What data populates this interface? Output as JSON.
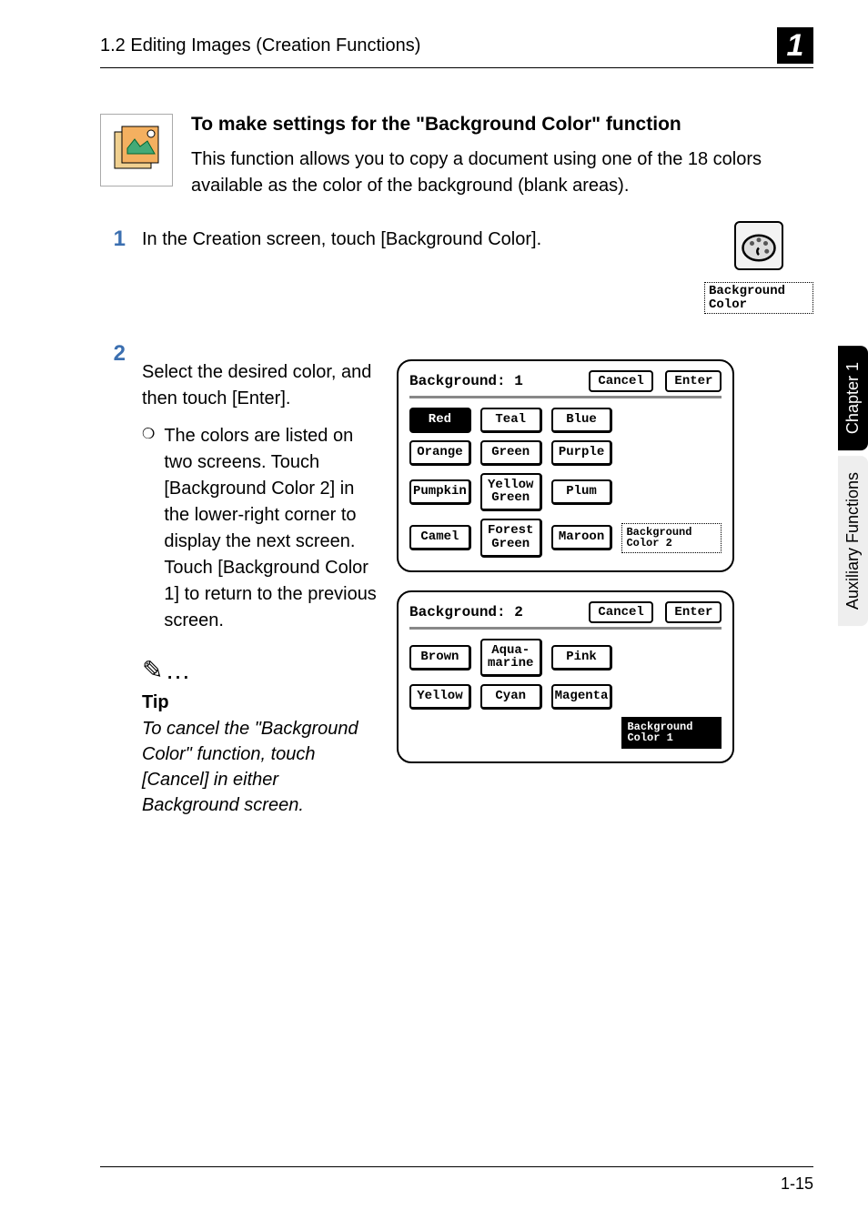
{
  "header": {
    "title": "1.2 Editing Images (Creation Functions)",
    "chapter_glyph": "1"
  },
  "section": {
    "heading": "To make settings for the \"Background Color\" function",
    "body": "This function allows you to copy a document using one of the 18 colors available as the color of the background (blank areas)."
  },
  "steps": {
    "step1": {
      "num": "1",
      "text": "In the Creation screen, touch [Background Color].",
      "button_label": "Background\nColor"
    },
    "step2": {
      "num": "2",
      "intro": "Select the desired color, and then touch [Enter].",
      "bullet_glyph": "❍",
      "substep": "The colors are listed on two screens. Touch [Background Color 2] in the lower-right corner to display the next screen.\nTouch [Background Color 1] to return to the previous screen."
    }
  },
  "tip": {
    "icon": "✎…",
    "label": "Tip",
    "body": "To cancel the \"Background Color\" function, touch [Cancel] in either Background screen."
  },
  "panels": {
    "common": {
      "cancel_label": "Cancel",
      "enter_label": "Enter"
    },
    "panel1": {
      "title_prefix": "Background:",
      "title_num": "1",
      "colors": [
        {
          "label": "Red",
          "selected": true
        },
        {
          "label": "Teal"
        },
        {
          "label": "Blue"
        },
        {
          "label": "Orange"
        },
        {
          "label": "Green"
        },
        {
          "label": "Purple"
        },
        {
          "label": "Pumpkin"
        },
        {
          "label": "Yellow\nGreen"
        },
        {
          "label": "Plum"
        },
        {
          "label": "Camel"
        },
        {
          "label": "Forest\nGreen"
        },
        {
          "label": "Maroon"
        }
      ],
      "nav_label": "Background\nColor 2"
    },
    "panel2": {
      "title_prefix": "Background:",
      "title_num": "2",
      "colors": [
        {
          "label": "Brown"
        },
        {
          "label": "Aqua-\nmarine"
        },
        {
          "label": "Pink"
        },
        {
          "label": "Yellow"
        },
        {
          "label": "Cyan"
        },
        {
          "label": "Magenta"
        }
      ],
      "nav_label": "Background\nColor 1"
    }
  },
  "side_tabs": {
    "chapter": "Chapter 1",
    "section": "Auxiliary Functions"
  },
  "footer": {
    "page_num": "1-15"
  },
  "style": {
    "accent_number_color": "#3b6fb0",
    "selected_bg": "#000000",
    "selected_fg": "#ffffff"
  }
}
